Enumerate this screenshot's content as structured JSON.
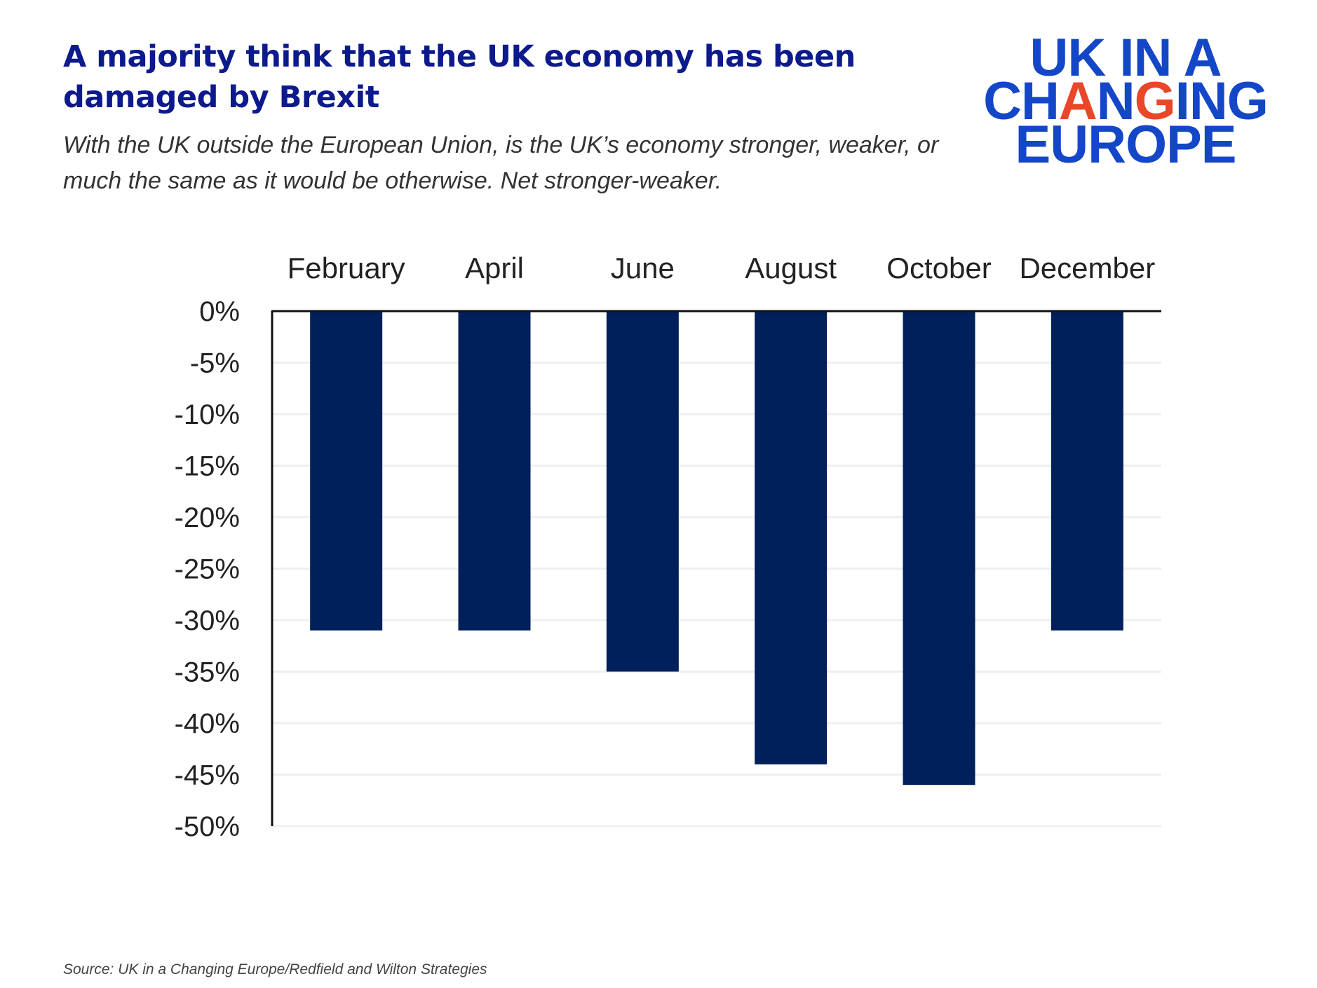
{
  "title": "A majority think that the UK economy has been damaged by Brexit",
  "subtitle": "With the UK outside the European Union, is the UK’s economy stronger, weaker, or much the same as it would be otherwise. Net stronger-weaker.",
  "logo": {
    "line1": "UK IN A",
    "line2": "CHANGING",
    "line3": "EUROPE"
  },
  "source": "Source: UK in a Changing Europe/Redfield and Wilton Strategies",
  "colors": {
    "bar": "#00205b",
    "title": "#0d1a8c",
    "logo": "#1446c8",
    "logo_accent": "#e8472a"
  },
  "chart_data": {
    "type": "bar",
    "categories": [
      "February",
      "April",
      "June",
      "August",
      "October",
      "December"
    ],
    "values": [
      -31,
      -31,
      -35,
      -44,
      -46,
      -31
    ],
    "ylim": [
      -50,
      0
    ],
    "yticks": [
      0,
      -5,
      -10,
      -15,
      -20,
      -25,
      -30,
      -35,
      -40,
      -45,
      -50
    ],
    "ytick_labels": [
      "0%",
      "-5%",
      "-10%",
      "-15%",
      "-20%",
      "-25%",
      "-30%",
      "-35%",
      "-40%",
      "-45%",
      "-50%"
    ],
    "category_axis_position": "top",
    "grid": true,
    "xlabel": "",
    "ylabel": ""
  }
}
